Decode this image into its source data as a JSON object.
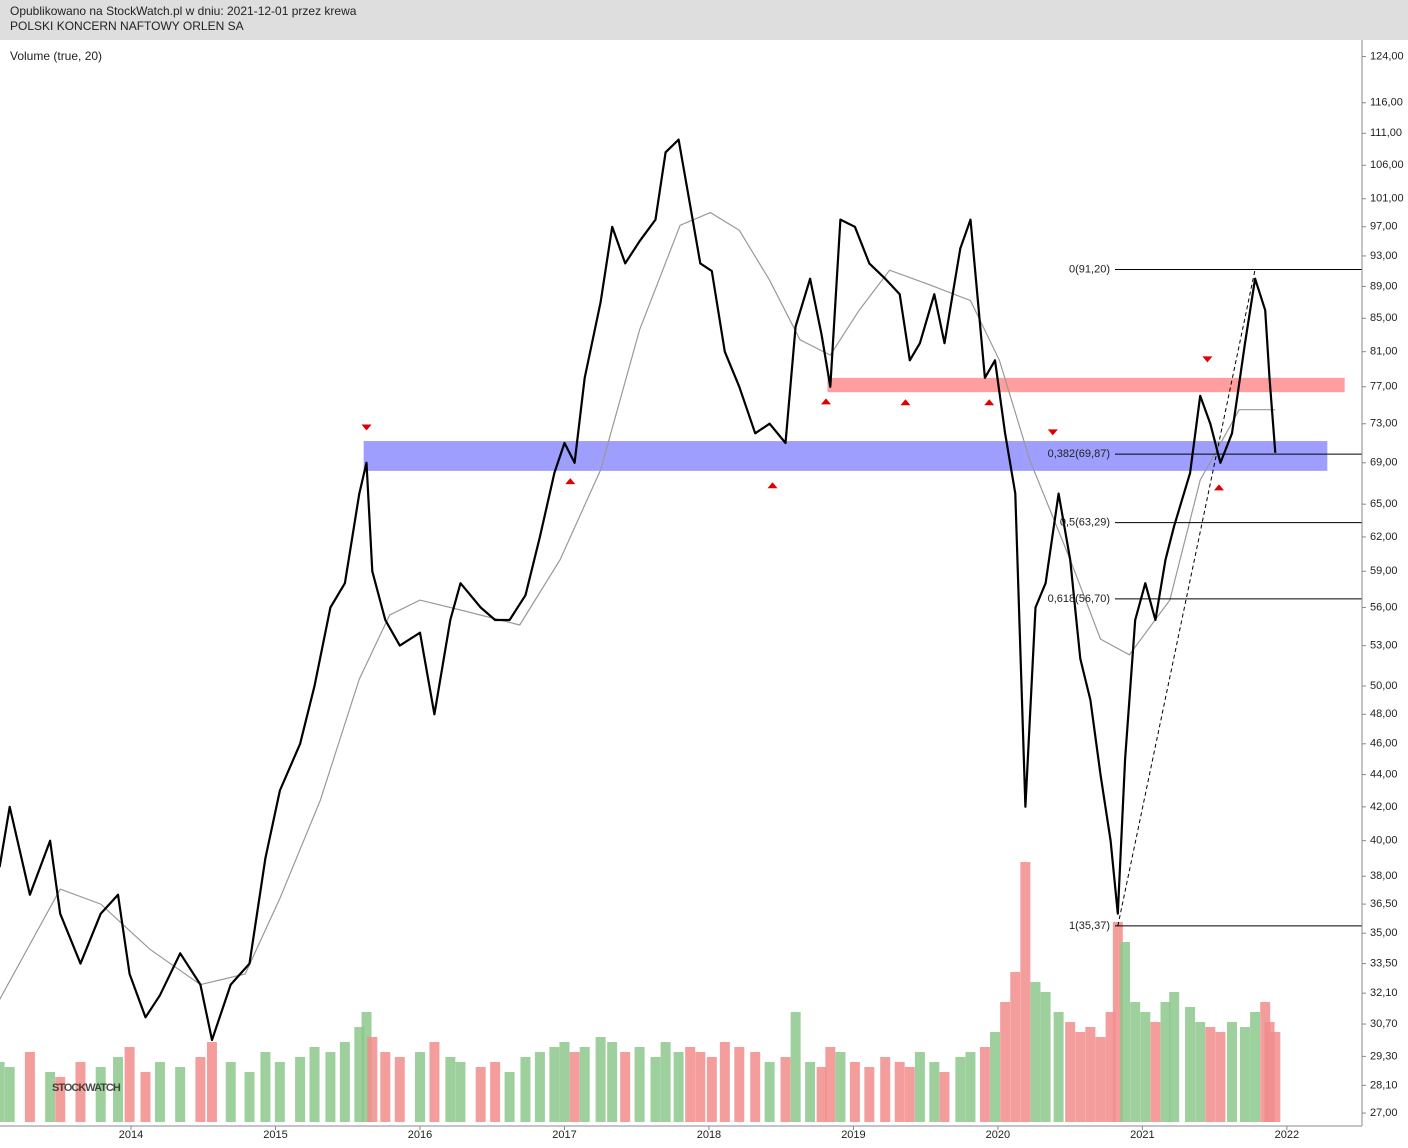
{
  "chart_data": {
    "type": "line",
    "title": "Opublikowano na StockWatch.pl w dniu: 2021-12-01 przez krewa",
    "subtitle": "POLSKI KONCERN NAFTOWY ORLEN SA",
    "indicator_label": "Volume (true, 20)",
    "watermark": "STOCKWATCH",
    "log_y": true,
    "xlim": [
      2013.093,
      2022.52
    ],
    "xticks": [
      2014,
      2015,
      2016,
      2017,
      2018,
      2019,
      2020,
      2021,
      2022
    ],
    "ylim": [
      26.5,
      127
    ],
    "yticks": [
      {
        "value": 124,
        "label": "124,00"
      },
      {
        "value": 116,
        "label": "116,00"
      },
      {
        "value": 111,
        "label": "111,00"
      },
      {
        "value": 106,
        "label": "106,00"
      },
      {
        "value": 101,
        "label": "101,00"
      },
      {
        "value": 97,
        "label": "97,00"
      },
      {
        "value": 93,
        "label": "93,00"
      },
      {
        "value": 89,
        "label": "89,00"
      },
      {
        "value": 85,
        "label": "85,00"
      },
      {
        "value": 81,
        "label": "81,00"
      },
      {
        "value": 77,
        "label": "77,00"
      },
      {
        "value": 73,
        "label": "73,00"
      },
      {
        "value": 69,
        "label": "69,00"
      },
      {
        "value": 65,
        "label": "65,00"
      },
      {
        "value": 62,
        "label": "62,00"
      },
      {
        "value": 59,
        "label": "59,00"
      },
      {
        "value": 56,
        "label": "56,00"
      },
      {
        "value": 53,
        "label": "53,00"
      },
      {
        "value": 50,
        "label": "50,00"
      },
      {
        "value": 48,
        "label": "48,00"
      },
      {
        "value": 46,
        "label": "46,00"
      },
      {
        "value": 44,
        "label": "44,00"
      },
      {
        "value": 42,
        "label": "42,00"
      },
      {
        "value": 40,
        "label": "40,00"
      },
      {
        "value": 38,
        "label": "38,00"
      },
      {
        "value": 36.5,
        "label": "36,50"
      },
      {
        "value": 35,
        "label": "35,00"
      },
      {
        "value": 33.5,
        "label": "33,50"
      },
      {
        "value": 32.1,
        "label": "32,10"
      },
      {
        "value": 30.7,
        "label": "30,70"
      },
      {
        "value": 29.3,
        "label": "29,30"
      },
      {
        "value": 28.1,
        "label": "28,10"
      },
      {
        "value": 27,
        "label": "27,00"
      }
    ],
    "x": [
      2013.09,
      2013.16,
      2013.3,
      2013.44,
      2013.51,
      2013.65,
      2013.79,
      2013.91,
      2013.99,
      2014.1,
      2014.2,
      2014.34,
      2014.48,
      2014.56,
      2014.69,
      2014.82,
      2014.93,
      2015.03,
      2015.17,
      2015.27,
      2015.38,
      2015.48,
      2015.58,
      2015.63,
      2015.67,
      2015.76,
      2015.86,
      2016.0,
      2016.1,
      2016.21,
      2016.28,
      2016.42,
      2016.52,
      2016.62,
      2016.73,
      2016.83,
      2016.93,
      2017.0,
      2017.07,
      2017.14,
      2017.25,
      2017.33,
      2017.42,
      2017.52,
      2017.63,
      2017.7,
      2017.79,
      2017.87,
      2017.94,
      2018.02,
      2018.11,
      2018.21,
      2018.32,
      2018.42,
      2018.53,
      2018.6,
      2018.7,
      2018.78,
      2018.84,
      2018.91,
      2019.01,
      2019.11,
      2019.22,
      2019.32,
      2019.39,
      2019.46,
      2019.56,
      2019.63,
      2019.74,
      2019.81,
      2019.91,
      2019.98,
      2020.05,
      2020.12,
      2020.19,
      2020.26,
      2020.33,
      2020.42,
      2020.5,
      2020.57,
      2020.64,
      2020.71,
      2020.78,
      2020.83,
      2020.88,
      2020.95,
      2021.02,
      2021.09,
      2021.16,
      2021.22,
      2021.33,
      2021.4,
      2021.47,
      2021.54,
      2021.62,
      2021.71,
      2021.78,
      2021.85,
      2021.88,
      2021.92
    ],
    "price": {
      "color": "#000000",
      "values": [
        38.5,
        42,
        37,
        40,
        36,
        33.5,
        36,
        37,
        33,
        31,
        32,
        34,
        32.5,
        30,
        32.5,
        33.5,
        39,
        43,
        46,
        50,
        56,
        58,
        66,
        69,
        59,
        55,
        53,
        54,
        48,
        55,
        58,
        56,
        55,
        55,
        57,
        62,
        68,
        71,
        69,
        78,
        87,
        97,
        92,
        95,
        98,
        108,
        110,
        100,
        92,
        91,
        81,
        77,
        72,
        73,
        71,
        84,
        90,
        83,
        77,
        98,
        97,
        92,
        90,
        88,
        80,
        82,
        88,
        82,
        94,
        98,
        78,
        80,
        72,
        66,
        42,
        56,
        58,
        66,
        60,
        52,
        49,
        44,
        40,
        36,
        45,
        55,
        58,
        55,
        60,
        63,
        68,
        76,
        73,
        69,
        72,
        82,
        90,
        86,
        78,
        70
      ]
    },
    "moving_average": {
      "color": "#999999",
      "x": [
        2013.09,
        2013.51,
        2013.79,
        2014.13,
        2014.48,
        2014.79,
        2015.03,
        2015.31,
        2015.58,
        2015.79,
        2016.0,
        2016.28,
        2016.69,
        2016.97,
        2017.25,
        2017.52,
        2017.8,
        2018.01,
        2018.21,
        2018.42,
        2018.63,
        2018.84,
        2019.04,
        2019.25,
        2019.53,
        2019.81,
        2020.01,
        2020.22,
        2020.5,
        2020.71,
        2020.91,
        2021.19,
        2021.4,
        2021.67,
        2021.92
      ],
      "values": [
        31.8,
        37.3,
        36.5,
        34.2,
        32.5,
        33.0,
        36.8,
        42.4,
        50.5,
        55.4,
        56.6,
        55.8,
        54.6,
        60.0,
        68.3,
        83.6,
        97.2,
        99.0,
        96.5,
        89.8,
        82.4,
        80.6,
        86.0,
        91.1,
        89.2,
        87.2,
        80.0,
        69.3,
        60.0,
        53.5,
        52.3,
        56.6,
        67.3,
        74.5,
        74.5
      ]
    },
    "volume": {
      "up_color": "#8cc88c",
      "down_color": "#f28c8c",
      "vlim": [
        0,
        300
      ],
      "values": [
        60,
        55,
        70,
        50,
        45,
        60,
        55,
        65,
        75,
        50,
        60,
        55,
        65,
        80,
        60,
        50,
        70,
        60,
        65,
        75,
        70,
        80,
        95,
        110,
        85,
        70,
        65,
        70,
        80,
        65,
        60,
        55,
        60,
        50,
        65,
        70,
        75,
        80,
        70,
        75,
        85,
        80,
        70,
        75,
        65,
        80,
        70,
        75,
        70,
        65,
        80,
        75,
        70,
        60,
        65,
        110,
        60,
        55,
        75,
        70,
        60,
        55,
        65,
        60,
        55,
        70,
        60,
        50,
        65,
        70,
        75,
        90,
        120,
        150,
        260,
        140,
        130,
        110,
        100,
        90,
        95,
        85,
        110,
        200,
        180,
        120,
        110,
        100,
        120,
        130,
        115,
        100,
        95,
        90,
        100,
        95,
        110,
        120,
        100,
        90
      ]
    },
    "zones": [
      {
        "low": 76.4,
        "high": 78.0,
        "x0": 2018.82,
        "x1": 2022.4,
        "color": "#ff9999"
      },
      {
        "low": 68.2,
        "high": 71.2,
        "x0": 2015.61,
        "x1": 2022.28,
        "color": "#9999ff"
      }
    ],
    "fib_levels": [
      {
        "value": 91.2,
        "label": "0(91,20)"
      },
      {
        "value": 69.87,
        "label": "0,382(69,87)"
      },
      {
        "value": 63.29,
        "label": "0,5(63,29)"
      },
      {
        "value": 56.7,
        "label": "0,618(56,70)"
      },
      {
        "value": 35.37,
        "label": "1(35,37)"
      }
    ],
    "fib_x": [
      2020.83,
      2021.78
    ],
    "markers": [
      {
        "x": 2015.63,
        "y": 72.6,
        "dir": "down"
      },
      {
        "x": 2020.38,
        "y": 72.1,
        "dir": "down"
      },
      {
        "x": 2021.45,
        "y": 80.1,
        "dir": "down"
      },
      {
        "x": 2017.04,
        "y": 67.2,
        "dir": "up"
      },
      {
        "x": 2018.44,
        "y": 66.8,
        "dir": "up"
      },
      {
        "x": 2018.81,
        "y": 75.4,
        "dir": "up"
      },
      {
        "x": 2019.36,
        "y": 75.3,
        "dir": "up"
      },
      {
        "x": 2019.94,
        "y": 75.3,
        "dir": "up"
      },
      {
        "x": 2021.53,
        "y": 66.6,
        "dir": "up"
      }
    ],
    "marker_color": "#dd0000"
  }
}
